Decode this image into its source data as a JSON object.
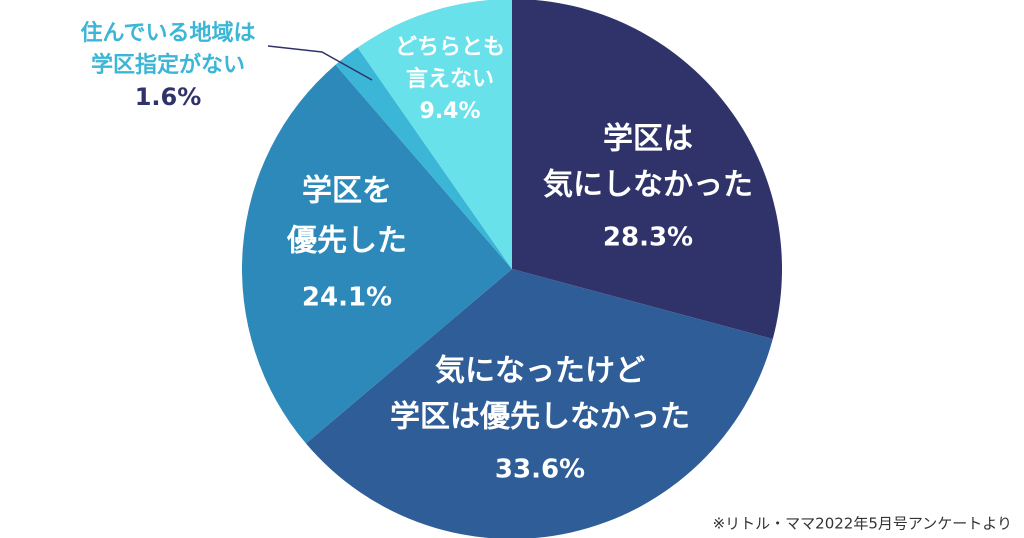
{
  "chart_data": {
    "type": "pie",
    "categories": [
      [
        "学区は",
        "気にしなかった"
      ],
      [
        "気になったけど",
        "学区は優先しなかった"
      ],
      [
        "学区を",
        "優先した"
      ],
      [
        "住んでいる地域は",
        "学区指定がない"
      ],
      [
        "どちらとも",
        "言えない"
      ]
    ],
    "values": [
      28.3,
      33.6,
      24.1,
      1.6,
      9.4
    ],
    "value_labels": [
      "28.3%",
      "33.6%",
      "24.1%",
      "1.6%",
      "9.4%"
    ],
    "colors": [
      "#30336a",
      "#2e5d97",
      "#2d89b9",
      "#3bb6d6",
      "#68e1ea"
    ],
    "note": "※リトル・ママ2022年5月号アンケートより"
  }
}
